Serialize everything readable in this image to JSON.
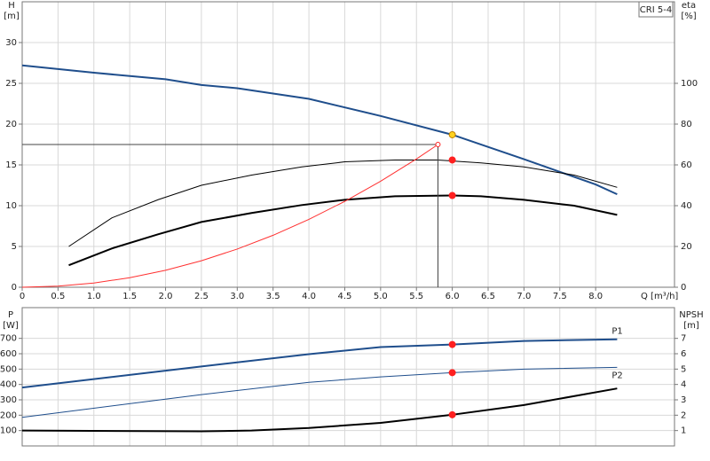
{
  "chart_data": [
    {
      "type": "line",
      "title": "CRI 5-4",
      "xlabel": "Q [m³/h]",
      "ylabel": "H",
      "yunit": "[m]",
      "y2label": "eta",
      "y2unit": "[%]",
      "xlim": [
        0,
        9.1
      ],
      "xticks": [
        0,
        0.5,
        {
          "value": 1,
          "label": "1.0"
        },
        1.5,
        {
          "value": 2,
          "label": "2.0"
        },
        2.5,
        {
          "value": 3,
          "label": "3.0"
        },
        3.5,
        {
          "value": 4,
          "label": "4.0"
        },
        4.5,
        {
          "value": 5,
          "label": "5.0"
        },
        5.5,
        {
          "value": 6,
          "label": "6.0"
        },
        6.5,
        {
          "value": 7,
          "label": "7.0"
        },
        7.5,
        {
          "value": 8,
          "label": "8.0"
        }
      ],
      "ylim": [
        0,
        35
      ],
      "yticks": [
        0,
        5,
        10,
        15,
        20,
        25,
        30
      ],
      "y2lim": [
        0,
        140
      ],
      "y2ticks": [
        0,
        20,
        40,
        60,
        80,
        100
      ],
      "grid": true,
      "series": [
        {
          "color": "#1f4e8c",
          "width": 2,
          "x": [
            0,
            1,
            2,
            2.5,
            3,
            4,
            5,
            6,
            7,
            8,
            8.3
          ],
          "values": [
            27.2,
            26.3,
            25.5,
            24.8,
            24.4,
            23.1,
            21.0,
            18.7,
            15.7,
            12.6,
            11.4
          ]
        },
        {
          "color": "#000000",
          "width": 1,
          "axis": "y2",
          "x": [
            0.65,
            1.25,
            1.9,
            2.5,
            3.2,
            3.9,
            4.5,
            5.2,
            5.8,
            6.4,
            7.0,
            7.7,
            8.3
          ],
          "values": [
            20,
            34,
            43,
            50,
            55,
            59,
            61.5,
            62.4,
            62.4,
            61,
            59,
            55,
            49
          ]
        },
        {
          "color": "#000000",
          "width": 2,
          "axis": "y2",
          "x": [
            0.65,
            1.25,
            1.9,
            2.5,
            3.2,
            3.9,
            4.5,
            5.2,
            6.0,
            6.4,
            7.0,
            7.7,
            8.3
          ],
          "values": [
            10.8,
            19,
            26,
            32,
            36.4,
            40.3,
            42.9,
            44.6,
            45,
            44.6,
            42.9,
            40,
            35.5
          ]
        },
        {
          "color": "#ff3030",
          "width": 1,
          "x": [
            0,
            0.5,
            1,
            1.5,
            2,
            2.5,
            3,
            3.5,
            4,
            4.5,
            5,
            5.5,
            5.8
          ],
          "values": [
            0,
            0.13,
            0.52,
            1.17,
            2.08,
            3.25,
            4.68,
            6.37,
            8.32,
            10.53,
            13.0,
            15.73,
            17.5
          ]
        },
        {
          "color": "#444444",
          "width": 1,
          "x": [
            0,
            5.8,
            5.8
          ],
          "values": [
            17.5,
            17.5,
            0
          ]
        }
      ],
      "points": [
        {
          "x": 6.0,
          "value": 18.7,
          "color": "#ffd21f",
          "filled": true
        },
        {
          "x": 6.0,
          "value": 62.4,
          "axis": "y2",
          "color": "#ff2020",
          "filled": true
        },
        {
          "x": 6.0,
          "value": 45,
          "axis": "y2",
          "color": "#ff2020",
          "filled": true
        },
        {
          "x": 5.8,
          "value": 17.5,
          "color": "#ff2020",
          "filled": false
        }
      ]
    },
    {
      "type": "line",
      "ylabel": "P",
      "yunit": "[W]",
      "y2label": "NPSH",
      "y2unit": "[m]",
      "xlim": [
        0,
        9.1
      ],
      "ylim": [
        0,
        900
      ],
      "yticks": [
        100,
        200,
        300,
        400,
        500,
        600,
        700
      ],
      "y2lim": [
        0,
        9
      ],
      "y2ticks": [
        1,
        2,
        3,
        4,
        5,
        6,
        7
      ],
      "grid": true,
      "series": [
        {
          "name": "P1",
          "color": "#1f4e8c",
          "width": 2,
          "x": [
            0,
            2.5,
            4,
            5,
            6,
            7,
            8.3
          ],
          "values": [
            380,
            517,
            597,
            643,
            660,
            683,
            694
          ]
        },
        {
          "name": "P2",
          "color": "#1f4e8c",
          "width": 1,
          "x": [
            0,
            2.5,
            4,
            5,
            6,
            7,
            8.3
          ],
          "values": [
            186,
            334,
            414,
            449,
            477,
            500,
            511
          ]
        },
        {
          "color": "#000000",
          "width": 2,
          "axis": "y2",
          "x": [
            0,
            2.5,
            3.2,
            4,
            5,
            6,
            7,
            8.3
          ],
          "values": [
            1.0,
            0.95,
            1.0,
            1.17,
            1.5,
            2.03,
            2.66,
            3.74
          ]
        }
      ],
      "points": [
        {
          "x": 6.0,
          "value": 660,
          "color": "#ff2020",
          "filled": true
        },
        {
          "x": 6.0,
          "value": 477,
          "color": "#ff2020",
          "filled": true
        },
        {
          "x": 6.0,
          "value": 2.03,
          "axis": "y2",
          "color": "#ff2020",
          "filled": true
        }
      ]
    }
  ]
}
